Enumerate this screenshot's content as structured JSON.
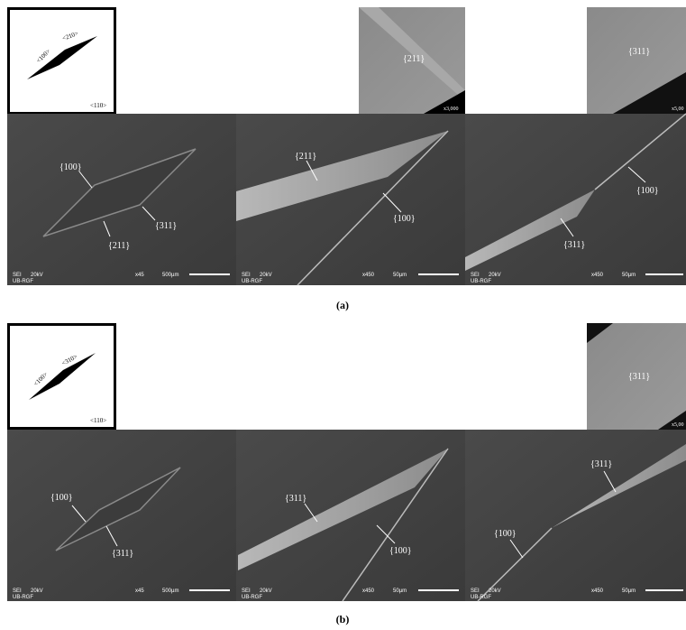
{
  "panels": [
    {
      "label": "(a)",
      "schematic": {
        "directions": [
          "<100>",
          "<210>",
          "<110>"
        ]
      },
      "insets": [
        {
          "facet": "{211}",
          "magnification": "x3,000"
        },
        {
          "facet": "{311}",
          "magnification": "x5,00"
        }
      ],
      "images": [
        {
          "labels": [
            "{100}",
            "{211}",
            "{311}"
          ],
          "detector": "SEI",
          "voltage": "20kV",
          "magnification": "x45",
          "scale": "500µm",
          "lab": "UB-RGF"
        },
        {
          "labels": [
            "{211}",
            "{100}"
          ],
          "detector": "SEI",
          "voltage": "20kV",
          "magnification": "x450",
          "scale": "50µm",
          "lab": "UB-RGF"
        },
        {
          "labels": [
            "{100}",
            "{311}"
          ],
          "detector": "SEI",
          "voltage": "20kV",
          "magnification": "x450",
          "scale": "50µm",
          "lab": "UB-RGF"
        }
      ]
    },
    {
      "label": "(b)",
      "schematic": {
        "directions": [
          "<100>",
          "<310>",
          "<110>"
        ]
      },
      "insets": [
        {
          "facet": "{311}",
          "magnification": "x5,00"
        }
      ],
      "images": [
        {
          "labels": [
            "{100}",
            "{311}"
          ],
          "detector": "SEI",
          "voltage": "20kV",
          "magnification": "x45",
          "scale": "500µm",
          "lab": "UB-RGF"
        },
        {
          "labels": [
            "{311}",
            "{100}"
          ],
          "detector": "SEI",
          "voltage": "20kV",
          "magnification": "x450",
          "scale": "50µm",
          "lab": "UB-RGF"
        },
        {
          "labels": [
            "{100}",
            "{311}"
          ],
          "detector": "SEI",
          "voltage": "20kV",
          "magnification": "x450",
          "scale": "50µm",
          "lab": "UB-RGF"
        }
      ]
    }
  ]
}
